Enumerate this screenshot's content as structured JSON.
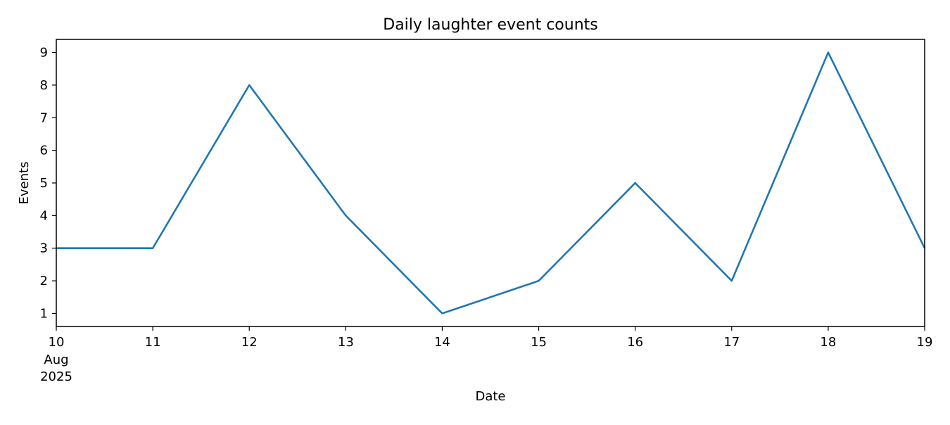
{
  "chart_data": {
    "type": "line",
    "title": "Daily laughter event counts",
    "xlabel": "Date",
    "ylabel": "Events",
    "x": [
      "2025-08-10",
      "2025-08-11",
      "2025-08-12",
      "2025-08-13",
      "2025-08-14",
      "2025-08-15",
      "2025-08-16",
      "2025-08-17",
      "2025-08-18",
      "2025-08-19"
    ],
    "x_tick_labels": [
      "10",
      "11",
      "12",
      "13",
      "14",
      "15",
      "16",
      "17",
      "18",
      "19"
    ],
    "x_tick_sublabel": {
      "month": "Aug",
      "year": "2025"
    },
    "series": [
      {
        "values": [
          3,
          3,
          8,
          4,
          1,
          2,
          5,
          2,
          9,
          3
        ],
        "color": "#1f77b4"
      }
    ],
    "xlim": [
      "2025-08-10",
      "2025-08-19"
    ],
    "ylim": [
      0.6,
      9.4
    ],
    "y_ticks": [
      1,
      2,
      3,
      4,
      5,
      6,
      7,
      8,
      9
    ],
    "grid": false,
    "legend": "none"
  }
}
